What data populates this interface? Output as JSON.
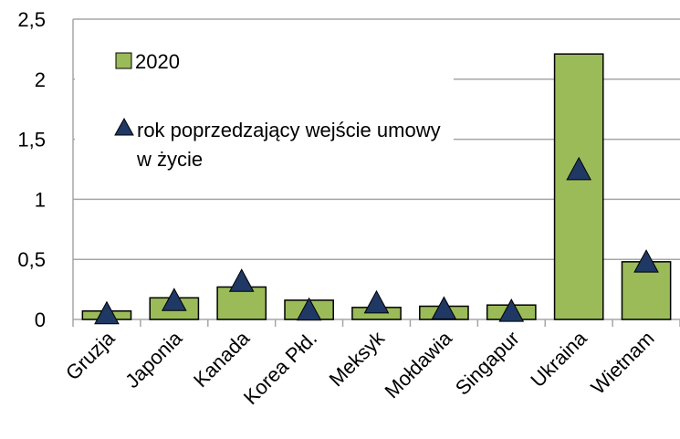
{
  "chart_data": {
    "type": "bar",
    "categories": [
      "Gruzja",
      "Japonia",
      "Kanada",
      "Korea Płd.",
      "Meksyk",
      "Mołdawia",
      "Singapur",
      "Ukraina",
      "Wietnam"
    ],
    "series": [
      {
        "name": "2020",
        "color": "#9bbb59",
        "values": [
          0.07,
          0.18,
          0.27,
          0.16,
          0.1,
          0.11,
          0.12,
          2.21,
          0.48
        ]
      },
      {
        "name": "rok poprzedzający wejście umowy w życie",
        "color": "#1f3864",
        "values": [
          0.04,
          0.15,
          0.31,
          0.07,
          0.13,
          0.08,
          0.06,
          1.24,
          0.47
        ]
      }
    ],
    "ylim": [
      0,
      2.5
    ],
    "yticks": [
      0,
      {
        "value": 0.5,
        "label": "0,5"
      },
      1,
      {
        "value": 1.5,
        "label": "1,5"
      },
      2,
      {
        "value": 2.5,
        "label": "2,5"
      }
    ],
    "grid": true,
    "legend": "top-left"
  }
}
